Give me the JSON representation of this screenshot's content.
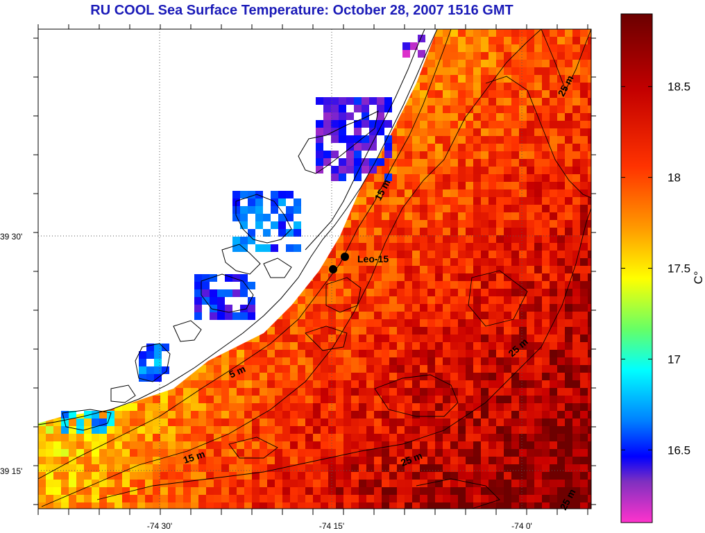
{
  "title": "RU COOL  Sea Surface Temperature:  October 28, 2007 1516 GMT",
  "colorbar": {
    "unit": "C°",
    "ticks": [
      "18.5",
      "18",
      "17.5",
      "17",
      "16.5"
    ],
    "tick_values": [
      18.5,
      18.0,
      17.5,
      17.0,
      16.5
    ],
    "range": [
      16.1,
      18.9
    ]
  },
  "lat_labels": [
    "39 30'",
    "39 15'"
  ],
  "lon_labels": [
    "-74 30'",
    "-74 15'",
    "-74 0'"
  ],
  "contour_labels": [
    "15 m",
    "5 m",
    "15 m",
    "25 m",
    "25 m",
    "25 m",
    "25 m"
  ],
  "station": {
    "name": "Leo-15"
  },
  "colors": {
    "title": "#1b1bb8",
    "land": "#ffffff",
    "coastline": "#000000",
    "station_marker": "#000000"
  }
}
